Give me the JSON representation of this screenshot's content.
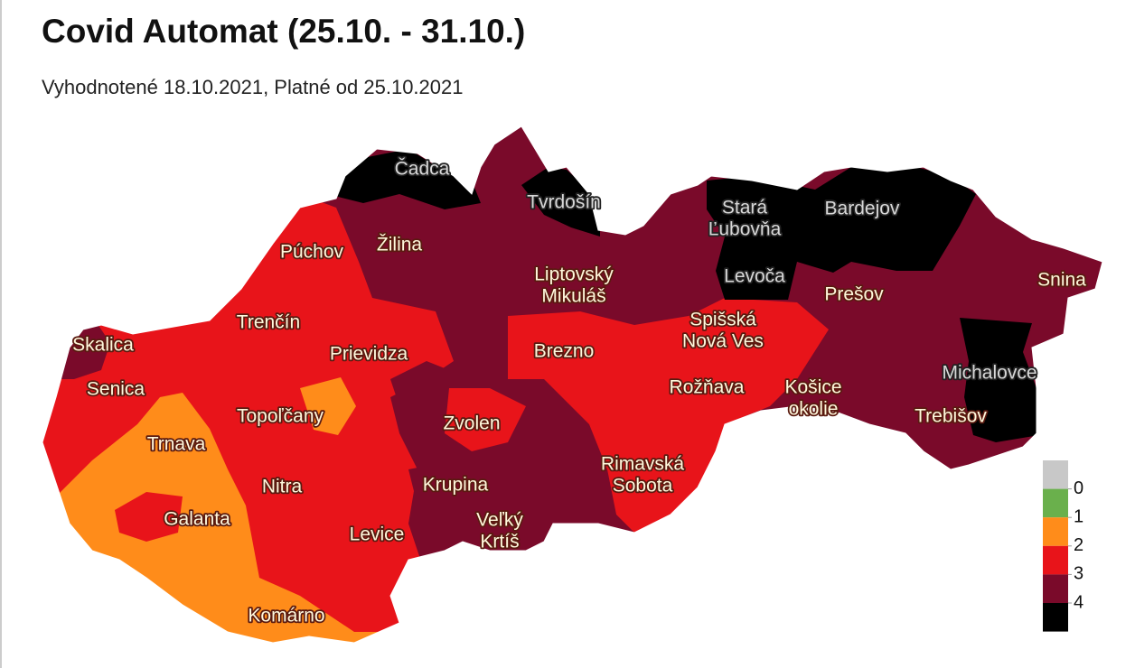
{
  "header": {
    "title": "Covid Automat (25.10. - 31.10.)",
    "subtitle": "Vyhodnotené 18.10.2021, Platné od 25.10.2021"
  },
  "map": {
    "labels": [
      [
        "Čadca"
      ],
      [
        "Tvrdošín"
      ],
      [
        "Púchov"
      ],
      [
        "Žilina"
      ],
      [
        "Stará",
        "Ľubovňa"
      ],
      [
        "Bardejov"
      ],
      [
        "Liptovský",
        "Mikuláš"
      ],
      [
        "Levoča"
      ],
      [
        "Prešov"
      ],
      [
        "Snina"
      ],
      [
        "Trenčín"
      ],
      [
        "Skalica"
      ],
      [
        "Spišská",
        "Nová Ves"
      ],
      [
        "Prievidza"
      ],
      [
        "Brezno"
      ],
      [
        "Michalovce"
      ],
      [
        "Senica"
      ],
      [
        "Rožňava"
      ],
      [
        "Košice",
        "okolie"
      ],
      [
        "Topoľčany"
      ],
      [
        "Zvolen"
      ],
      [
        "Trebišov"
      ],
      [
        "Trnava"
      ],
      [
        "Rimavská",
        "Sobota"
      ],
      [
        "Nitra"
      ],
      [
        "Krupina"
      ],
      [
        "Galanta"
      ],
      [
        "Veľký",
        "Krtíš"
      ],
      [
        "Levice"
      ],
      [
        "Komárno"
      ]
    ]
  },
  "legend": {
    "colors": [
      "#c8c8c8",
      "#6ab04c",
      "#ff8c1a",
      "#e8141a",
      "#7a0a2a",
      "#000000"
    ],
    "ticks": [
      0,
      1,
      2,
      3,
      4
    ]
  }
}
